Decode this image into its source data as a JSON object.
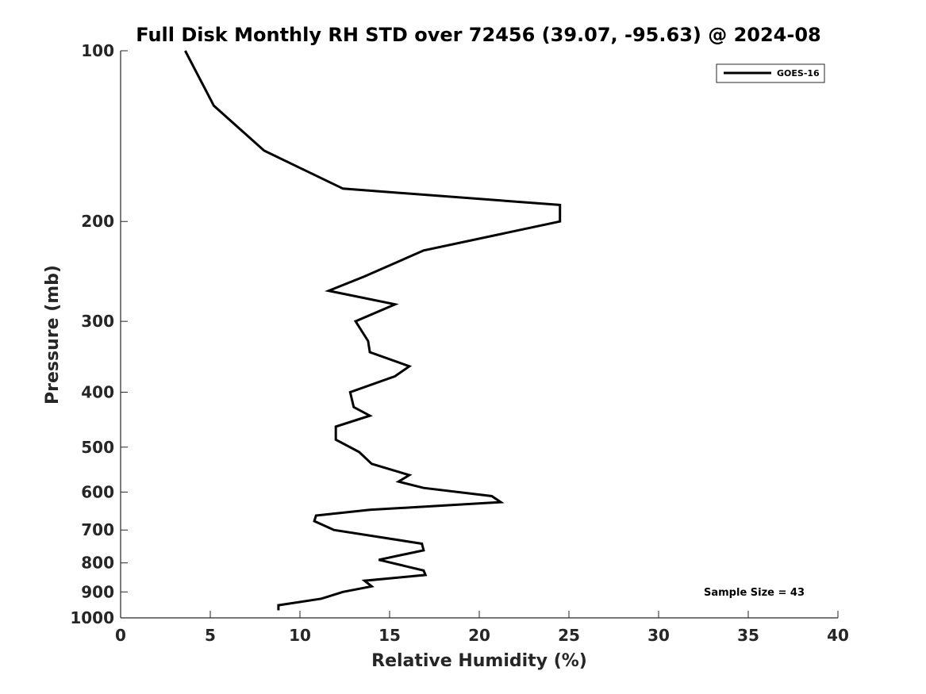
{
  "chart_data": {
    "type": "line",
    "title": "Full Disk Monthly RH STD over 72456 (39.07, -95.63) @ 2024-08",
    "xlabel": "Relative Humidity (%)",
    "ylabel": "Pressure (mb)",
    "xlim": [
      0,
      40
    ],
    "ylim": [
      100,
      1000
    ],
    "yscale": "log",
    "y_reversed": true,
    "xticks": [
      0,
      5,
      10,
      15,
      20,
      25,
      30,
      35,
      40
    ],
    "yticks": [
      100,
      200,
      300,
      400,
      500,
      600,
      700,
      800,
      900,
      1000
    ],
    "grid": false,
    "legend": {
      "placement": "top-right",
      "entries": [
        "GOES-16"
      ]
    },
    "annotation": "Sample Size = 43",
    "series": [
      {
        "name": "GOES-16",
        "color": "#000000",
        "points": [
          [
            3.6,
            100
          ],
          [
            5.2,
            125
          ],
          [
            8.0,
            150
          ],
          [
            12.4,
            175
          ],
          [
            24.5,
            187
          ],
          [
            24.5,
            200
          ],
          [
            16.9,
            225
          ],
          [
            13.6,
            250
          ],
          [
            11.6,
            265
          ],
          [
            15.3,
            280
          ],
          [
            13.1,
            300
          ],
          [
            13.8,
            325
          ],
          [
            13.9,
            340
          ],
          [
            16.1,
            360
          ],
          [
            15.3,
            375
          ],
          [
            12.8,
            400
          ],
          [
            13.0,
            425
          ],
          [
            13.9,
            440
          ],
          [
            12.0,
            460
          ],
          [
            12.0,
            485
          ],
          [
            13.3,
            510
          ],
          [
            14.0,
            535
          ],
          [
            16.1,
            560
          ],
          [
            15.5,
            575
          ],
          [
            16.9,
            590
          ],
          [
            20.7,
            610
          ],
          [
            21.2,
            625
          ],
          [
            13.9,
            645
          ],
          [
            10.9,
            660
          ],
          [
            10.8,
            675
          ],
          [
            11.9,
            700
          ],
          [
            16.8,
            740
          ],
          [
            16.9,
            760
          ],
          [
            14.4,
            790
          ],
          [
            16.9,
            825
          ],
          [
            17.0,
            840
          ],
          [
            13.6,
            860
          ],
          [
            14.0,
            880
          ],
          [
            12.4,
            900
          ],
          [
            11.2,
            925
          ],
          [
            8.8,
            950
          ],
          [
            8.8,
            970
          ]
        ]
      }
    ]
  }
}
